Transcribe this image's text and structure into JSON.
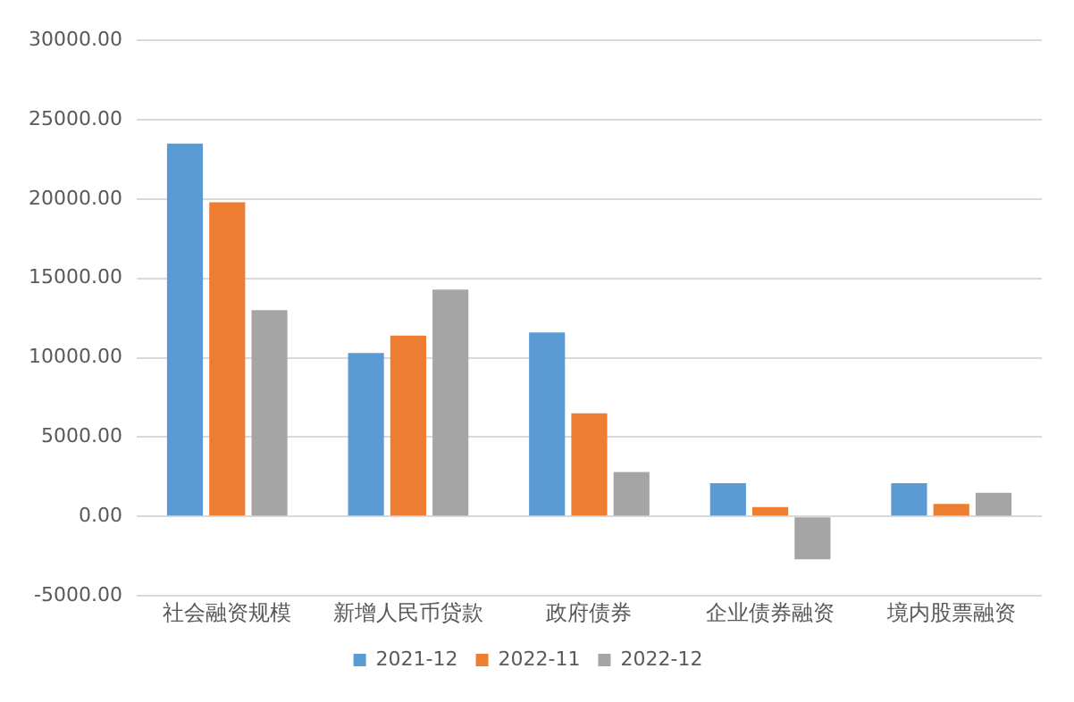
{
  "chart_data": {
    "type": "bar",
    "categories": [
      "社会融资规模",
      "新增人民币贷款",
      "政府债券",
      "企业债券融资",
      "境内股票融资"
    ],
    "series": [
      {
        "name": "2021-12",
        "color": "#5b9bd5",
        "values": [
          23500,
          10300,
          11600,
          2100,
          2100
        ]
      },
      {
        "name": "2022-11",
        "color": "#ed7d31",
        "values": [
          19800,
          11400,
          6500,
          600,
          800
        ]
      },
      {
        "name": "2022-12",
        "color": "#a5a5a5",
        "values": [
          13000,
          14300,
          2800,
          -2700,
          1500
        ]
      }
    ],
    "ylim": [
      -5000,
      30000
    ],
    "yticks": [
      {
        "value": -5000,
        "label": "-5000.00"
      },
      {
        "value": 0,
        "label": "0.00"
      },
      {
        "value": 5000,
        "label": "5000.00"
      },
      {
        "value": 10000,
        "label": "10000.00"
      },
      {
        "value": 15000,
        "label": "15000.00"
      },
      {
        "value": 20000,
        "label": "20000.00"
      },
      {
        "value": 25000,
        "label": "25000.00"
      },
      {
        "value": 30000,
        "label": "30000.00"
      }
    ],
    "grid": "y",
    "legend": "bottom"
  }
}
